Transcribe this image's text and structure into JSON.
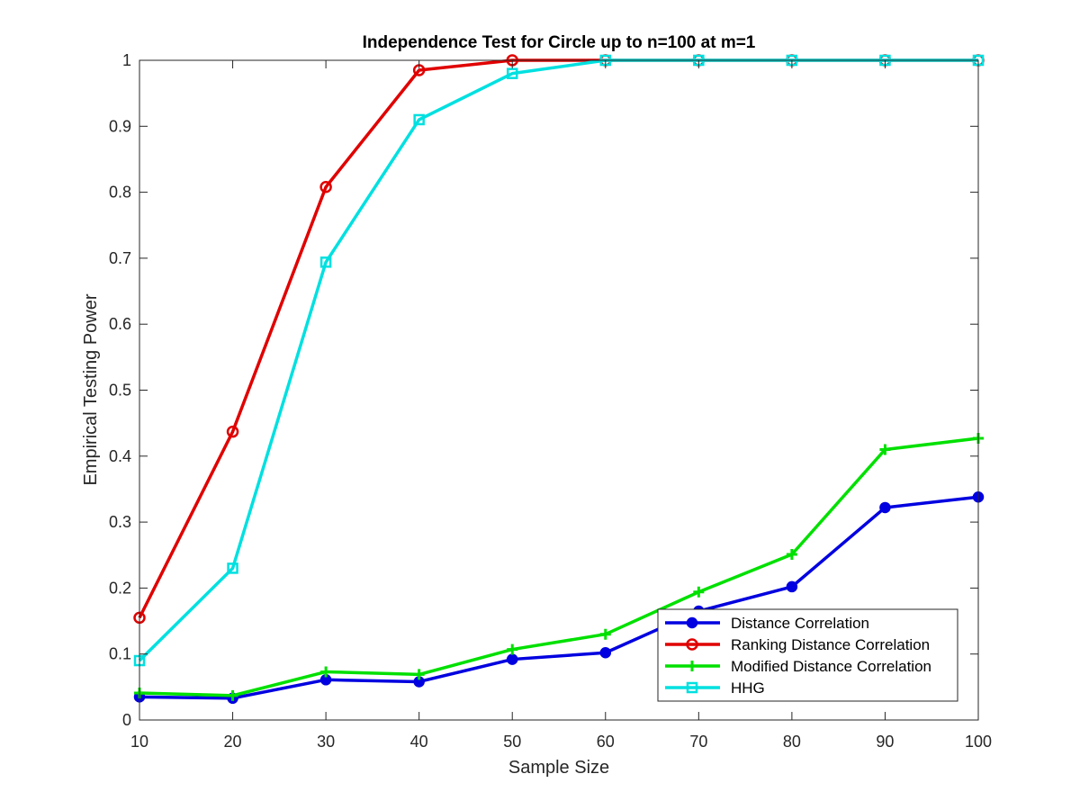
{
  "chart_data": {
    "type": "line",
    "title": "Independence Test for Circle up to n=100 at m=1",
    "xlabel": "Sample Size",
    "ylabel": "Empirical Testing Power",
    "xlim": [
      10,
      100
    ],
    "ylim": [
      0,
      1
    ],
    "xticks": [
      "10",
      "20",
      "30",
      "40",
      "50",
      "60",
      "70",
      "80",
      "90",
      "100"
    ],
    "yticks": [
      "0",
      "0.1",
      "0.2",
      "0.3",
      "0.4",
      "0.5",
      "0.6",
      "0.7",
      "0.8",
      "0.9",
      "1"
    ],
    "x": [
      10,
      20,
      30,
      40,
      50,
      60,
      70,
      80,
      90,
      100
    ],
    "grid": false,
    "legend": "bottom-right",
    "series": [
      {
        "name": "Distance Correlation",
        "color": "#0000e0",
        "marker": "filled-circle",
        "values": [
          0.035,
          0.033,
          0.061,
          0.058,
          0.092,
          0.102,
          0.165,
          0.202,
          0.322,
          0.338
        ]
      },
      {
        "name": "Ranking Distance Correlation",
        "color": "#e00000",
        "marker": "open-circle",
        "values": [
          0.155,
          0.437,
          0.808,
          0.985,
          1.0,
          1.0,
          1.0,
          1.0,
          1.0,
          1.0
        ]
      },
      {
        "name": "Modified Distance Correlation",
        "color": "#00e000",
        "marker": "plus",
        "values": [
          0.041,
          0.037,
          0.073,
          0.069,
          0.107,
          0.13,
          0.194,
          0.251,
          0.41,
          0.427
        ]
      },
      {
        "name": "HHG",
        "color": "#00e0e0",
        "marker": "open-square",
        "values": [
          0.09,
          0.23,
          0.694,
          0.91,
          0.98,
          1.0,
          1.0,
          1.0,
          1.0,
          1.0
        ]
      }
    ]
  }
}
